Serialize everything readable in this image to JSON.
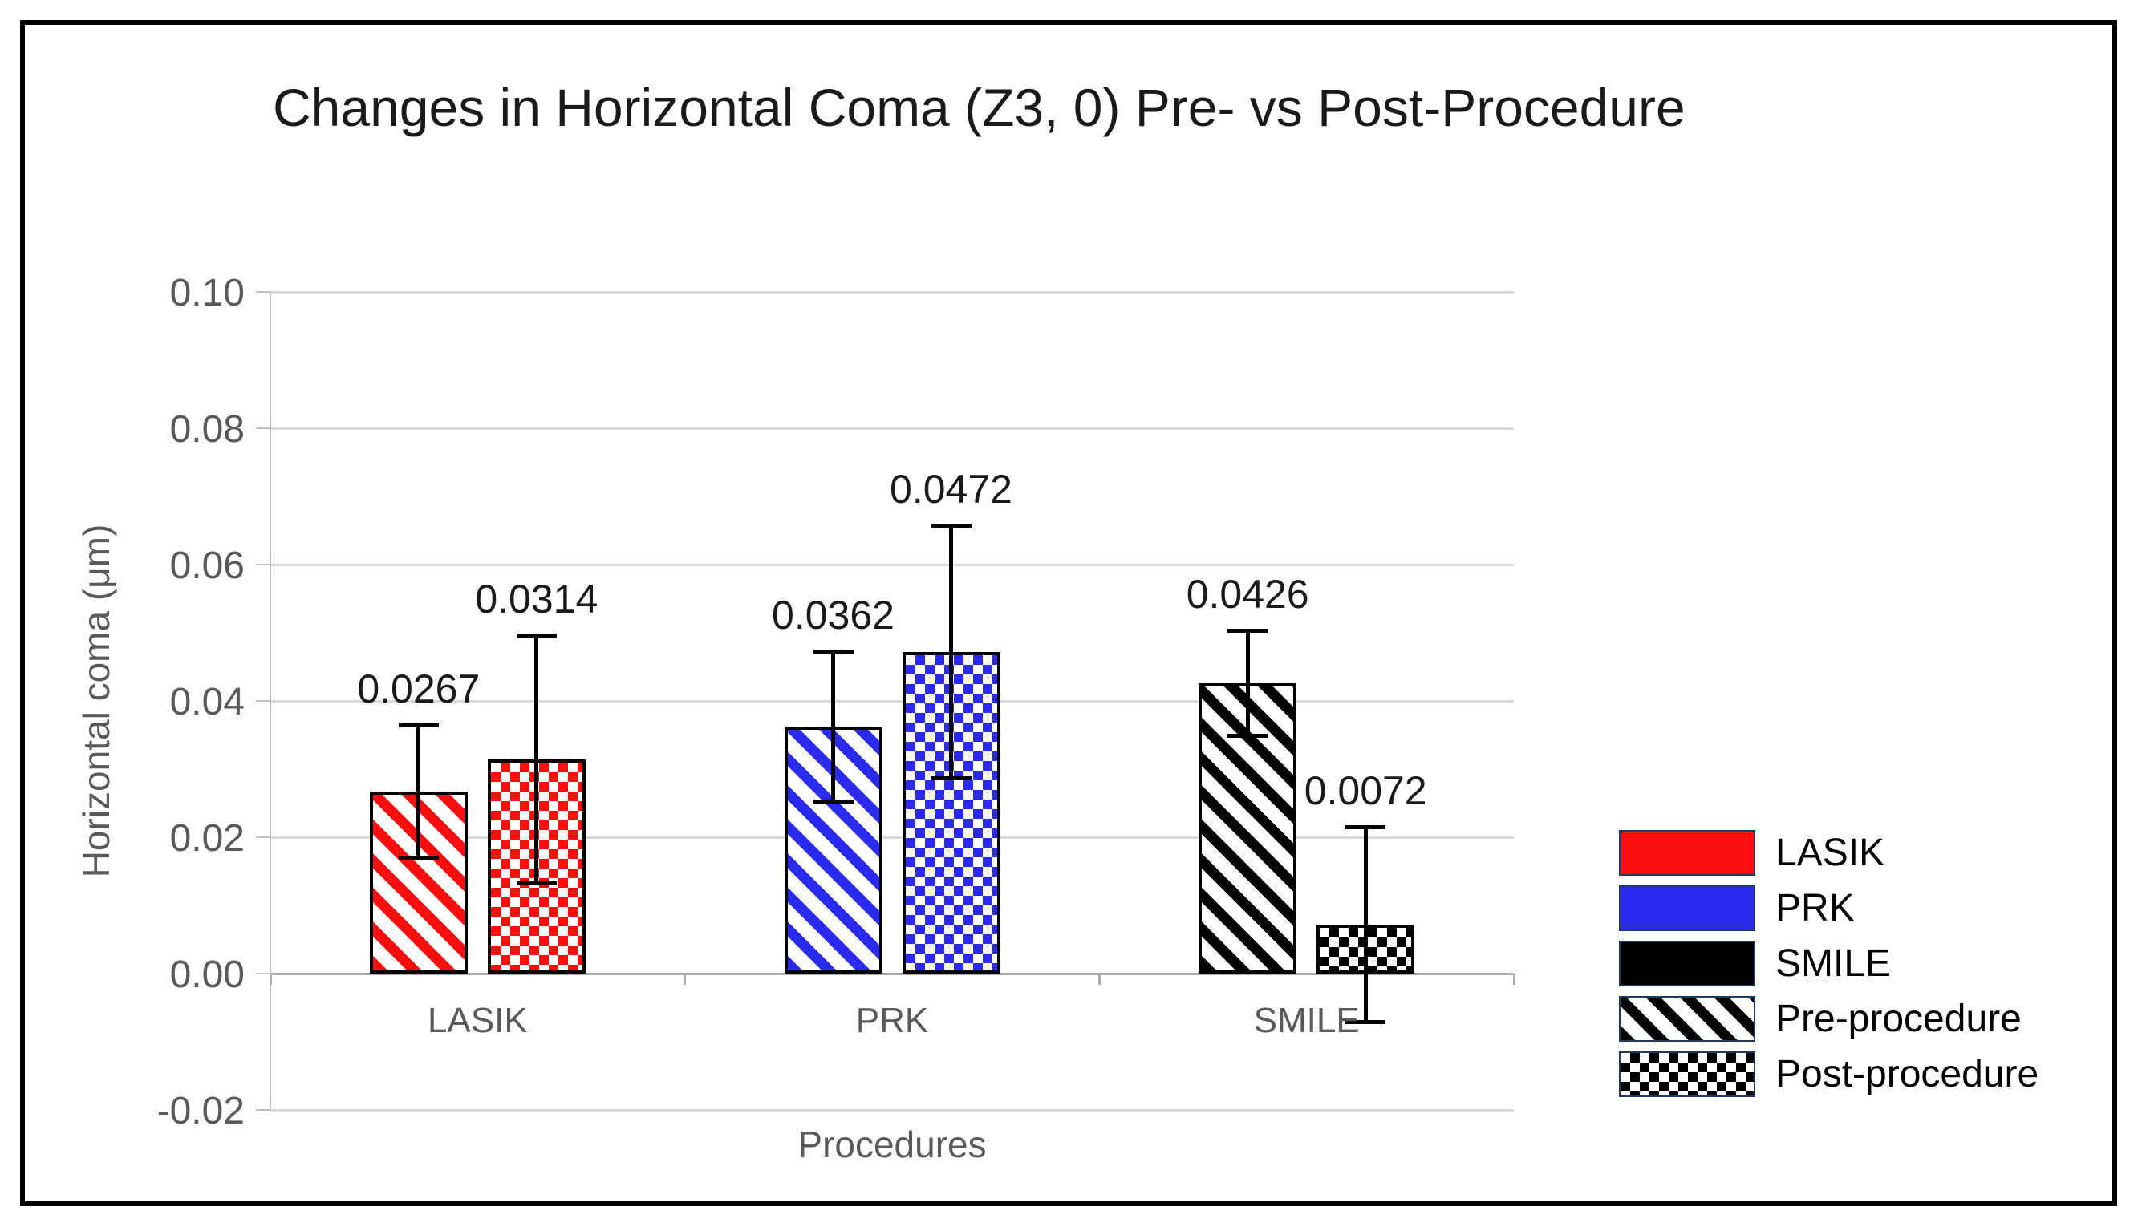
{
  "chart_data": {
    "type": "bar",
    "title": "Changes in Horizontal Coma (Z3, 0) Pre- vs Post-Procedure",
    "xlabel": "Procedures",
    "ylabel": "Horizontal coma (μm)",
    "ylim": [
      -0.02,
      0.1
    ],
    "ytick_step": 0.02,
    "y_ticks": [
      "0.10",
      "0.08",
      "0.06",
      "0.04",
      "0.02",
      "0.00",
      "-0.02"
    ],
    "grid": true,
    "legend_position": "right",
    "categories": [
      "LASIK",
      "PRK",
      "SMILE"
    ],
    "category_colors": {
      "LASIK": "#FB0E0E",
      "PRK": "#2B2BF0",
      "SMILE": "#000000"
    },
    "series": [
      {
        "name": "Pre-procedure",
        "pattern": "diagonal-stripe",
        "values": [
          0.0267,
          0.0362,
          0.0426
        ],
        "value_labels": [
          "0.0267",
          "0.0362",
          "0.0426"
        ],
        "error_plus": [
          0.01,
          0.0113,
          0.008
        ],
        "error_minus": [
          0.01,
          0.0113,
          0.008
        ]
      },
      {
        "name": "Post-procedure",
        "pattern": "checkerboard",
        "values": [
          0.0314,
          0.0472,
          0.0072
        ],
        "value_labels": [
          "0.0314",
          "0.0472",
          "0.0072"
        ],
        "error_plus": [
          0.0185,
          0.0188,
          0.0146
        ],
        "error_minus": [
          0.0185,
          0.0188,
          0.0146
        ]
      }
    ],
    "legend": [
      {
        "label": "LASIK",
        "swatch": "solid",
        "color": "#FB0E0E"
      },
      {
        "label": "PRK",
        "swatch": "solid",
        "color": "#2B2BF0"
      },
      {
        "label": "SMILE",
        "swatch": "solid",
        "color": "#000000"
      },
      {
        "label": "Pre-procedure",
        "swatch": "diagonal-stripe",
        "color": "#000000"
      },
      {
        "label": "Post-procedure",
        "swatch": "checkerboard",
        "color": "#000000"
      }
    ],
    "style": {
      "gridline_color": "#D9D9D9",
      "axis_line_color": "#ADADAD",
      "tick_color": "#BFBFBF",
      "bar_border_color": "#000000",
      "error_bar_color": "#000000",
      "legend_swatch_border": "#1F3864",
      "text_gray": "#595959"
    }
  }
}
